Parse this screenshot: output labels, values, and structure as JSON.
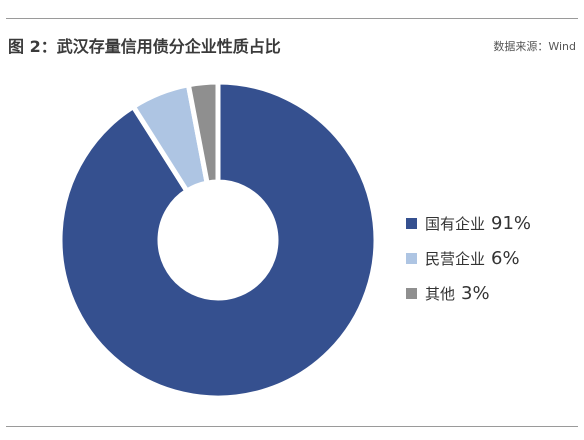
{
  "header": {
    "title": "图 2：武汉存量信用债分企业性质占比",
    "source": "数据来源：Wind"
  },
  "chart_data": {
    "type": "pie",
    "donut": true,
    "categories": [
      "国有企业",
      "民营企业",
      "其他"
    ],
    "values": [
      91,
      6,
      3
    ],
    "value_labels": [
      "91%",
      "6%",
      "3%"
    ],
    "colors": [
      "#35508f",
      "#aec5e3",
      "#8f8f8f"
    ],
    "start_angle_deg": 0,
    "direction": "clockwise",
    "legend_position": "right"
  }
}
